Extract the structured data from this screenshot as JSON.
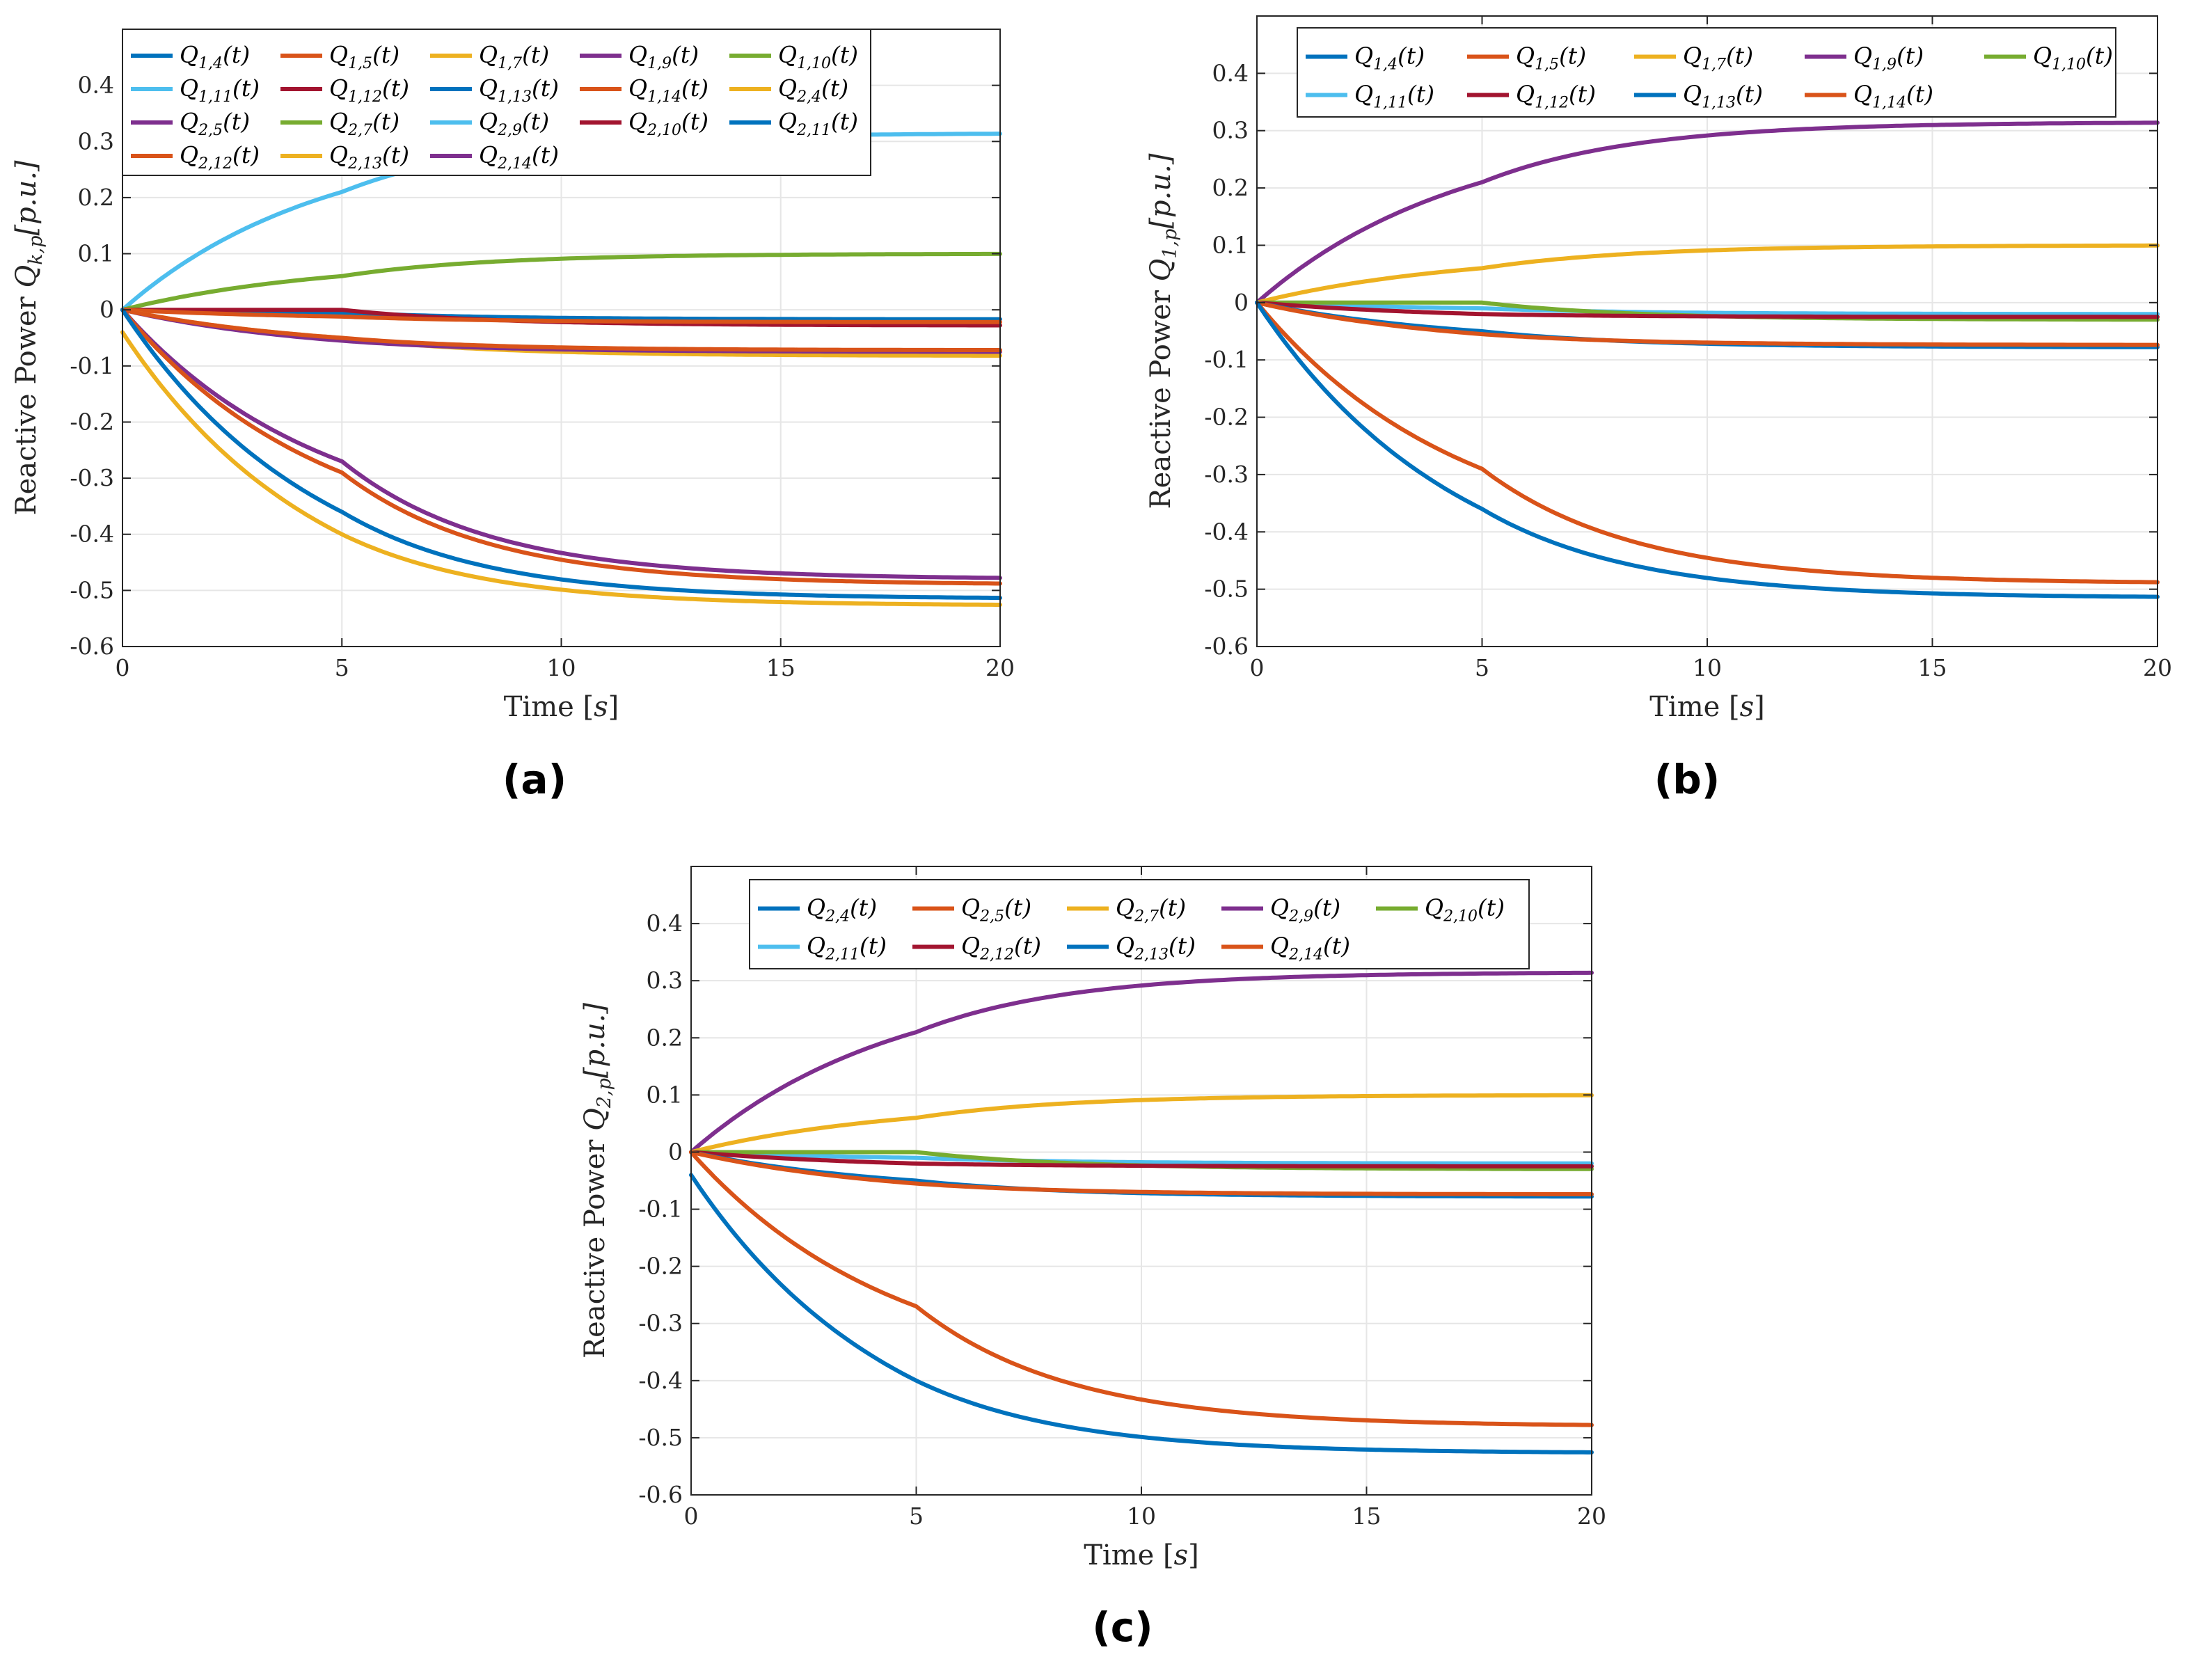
{
  "colors": {
    "blue": "#0072BD",
    "orange": "#D95319",
    "yellow": "#EDB120",
    "purple": "#7E2F8E",
    "green": "#77AC30",
    "cyan": "#4DBEEE",
    "darkred": "#A2142F"
  },
  "chart_data": [
    {
      "id": "a",
      "type": "line",
      "caption": "(a)",
      "xlabel": "Time [s]",
      "ylabel": "Reactive Power Q_k,p [p.u.]",
      "xlim": [
        0,
        20
      ],
      "ylim": [
        -0.6,
        0.5
      ],
      "xticks": [
        "0",
        "5",
        "10",
        "15",
        "20"
      ],
      "yticks": [
        "0.4",
        "0.3",
        "0.2",
        "0.1",
        "0",
        "-0.1",
        "-0.2",
        "-0.3",
        "-0.4",
        "-0.5",
        "-0.6"
      ],
      "legend_position": "top",
      "legend_rows": [
        [
          "Q1,4(t)",
          "Q1,5(t)",
          "Q1,7(t)",
          "Q1,9(t)",
          "Q1,10(t)"
        ],
        [
          "Q1,11(t)",
          "Q1,12(t)",
          "Q1,13(t)",
          "Q1,14(t)",
          "Q2,4(t)"
        ],
        [
          "Q2,5(t)",
          "Q2,7(t)",
          "Q2,9(t)",
          "Q2,10(t)",
          "Q2,11(t)"
        ],
        [
          "Q2,12(t)",
          "Q2,13(t)",
          "Q2,14(t)"
        ]
      ],
      "legend_colors": [
        [
          "blue",
          "orange",
          "yellow",
          "purple",
          "green"
        ],
        [
          "cyan",
          "darkred",
          "blue",
          "orange",
          "yellow"
        ],
        [
          "purple",
          "green",
          "cyan",
          "darkred",
          "blue"
        ],
        [
          "orange",
          "yellow",
          "purple"
        ]
      ],
      "series": [
        {
          "name": "Q1,11 / Q2,9",
          "color": "cyan",
          "y0": 0,
          "y5": 0.21,
          "yinf": 0.315
        },
        {
          "name": "Q1,10 / Q2,7",
          "color": "green",
          "y0": 0,
          "y5": 0.06,
          "yinf": 0.1
        },
        {
          "name": "Q1,13",
          "color": "blue",
          "y0": 0,
          "y5": -0.005,
          "yinf": -0.017
        },
        {
          "name": "Q1,12",
          "color": "darkred",
          "y0": 0,
          "y5": 0.0,
          "yinf": -0.028
        },
        {
          "name": "Q1,5",
          "color": "orange",
          "y0": 0,
          "y5": -0.012,
          "yinf": -0.022
        },
        {
          "name": "Q1,7",
          "color": "yellow",
          "y0": 0,
          "y5": -0.05,
          "yinf": -0.082
        },
        {
          "name": "Q1,9",
          "color": "purple",
          "y0": 0,
          "y5": -0.055,
          "yinf": -0.075
        },
        {
          "name": "Q1,14",
          "color": "orange",
          "y0": 0,
          "y5": -0.05,
          "yinf": -0.072
        },
        {
          "name": "Q2,14",
          "color": "purple",
          "y0": 0,
          "y5": -0.27,
          "yinf": -0.48
        },
        {
          "name": "Q2,12",
          "color": "orange",
          "y0": 0,
          "y5": -0.29,
          "yinf": -0.49
        },
        {
          "name": "Q1,4",
          "color": "blue",
          "y0": 0,
          "y5": -0.36,
          "yinf": -0.515
        },
        {
          "name": "Q2,4",
          "color": "yellow",
          "y0": -0.04,
          "y5": -0.4,
          "yinf": -0.527
        }
      ]
    },
    {
      "id": "b",
      "type": "line",
      "caption": "(b)",
      "xlabel": "Time [s]",
      "ylabel": "Reactive Power Q_1,p [p.u.]",
      "xlim": [
        0,
        20
      ],
      "ylim": [
        -0.6,
        0.5
      ],
      "xticks": [
        "0",
        "5",
        "10",
        "15",
        "20"
      ],
      "yticks": [
        "0.4",
        "0.3",
        "0.2",
        "0.1",
        "0",
        "-0.1",
        "-0.2",
        "-0.3",
        "-0.4",
        "-0.5",
        "-0.6"
      ],
      "legend_position": "top",
      "legend_rows": [
        [
          "Q1,4(t)",
          "Q1,5(t)",
          "Q1,7(t)",
          "Q1,9(t)",
          "Q1,10(t)"
        ],
        [
          "Q1,11(t)",
          "Q1,12(t)",
          "Q1,13(t)",
          "Q1,14(t)"
        ]
      ],
      "legend_colors": [
        [
          "blue",
          "orange",
          "yellow",
          "purple",
          "green"
        ],
        [
          "cyan",
          "darkred",
          "blue",
          "orange"
        ]
      ],
      "series": [
        {
          "name": "Q1,9",
          "color": "purple",
          "y0": 0,
          "y5": 0.21,
          "yinf": 0.315
        },
        {
          "name": "Q1,7",
          "color": "yellow",
          "y0": 0,
          "y5": 0.06,
          "yinf": 0.1
        },
        {
          "name": "Q1,11",
          "color": "cyan",
          "y0": 0,
          "y5": -0.01,
          "yinf": -0.02
        },
        {
          "name": "Q1,10",
          "color": "green",
          "y0": 0,
          "y5": 0.0,
          "yinf": -0.03
        },
        {
          "name": "Q1,12",
          "color": "darkred",
          "y0": 0,
          "y5": -0.02,
          "yinf": -0.025
        },
        {
          "name": "Q1,13",
          "color": "blue",
          "y0": 0,
          "y5": -0.05,
          "yinf": -0.078
        },
        {
          "name": "Q1,14",
          "color": "orange",
          "y0": 0,
          "y5": -0.055,
          "yinf": -0.074
        },
        {
          "name": "Q1,5",
          "color": "orange",
          "y0": 0,
          "y5": -0.29,
          "yinf": -0.49
        },
        {
          "name": "Q1,4",
          "color": "blue",
          "y0": 0,
          "y5": -0.36,
          "yinf": -0.515
        }
      ]
    },
    {
      "id": "c",
      "type": "line",
      "caption": "(c)",
      "xlabel": "Time [s]",
      "ylabel": "Reactive Power Q_2,p [p.u.]",
      "xlim": [
        0,
        20
      ],
      "ylim": [
        -0.6,
        0.5
      ],
      "xticks": [
        "0",
        "5",
        "10",
        "15",
        "20"
      ],
      "yticks": [
        "0.4",
        "0.3",
        "0.2",
        "0.1",
        "0",
        "-0.1",
        "-0.2",
        "-0.3",
        "-0.4",
        "-0.5",
        "-0.6"
      ],
      "legend_position": "top",
      "legend_rows": [
        [
          "Q2,4(t)",
          "Q2,5(t)",
          "Q2,7(t)",
          "Q2,9(t)",
          "Q2,10(t)"
        ],
        [
          "Q2,11(t)",
          "Q2,12(t)",
          "Q2,13(t)",
          "Q2,14(t)"
        ]
      ],
      "legend_colors": [
        [
          "blue",
          "orange",
          "yellow",
          "purple",
          "green"
        ],
        [
          "cyan",
          "darkred",
          "blue",
          "orange"
        ]
      ],
      "series": [
        {
          "name": "Q2,9",
          "color": "purple",
          "y0": 0,
          "y5": 0.21,
          "yinf": 0.315
        },
        {
          "name": "Q2,7",
          "color": "yellow",
          "y0": 0,
          "y5": 0.06,
          "yinf": 0.1
        },
        {
          "name": "Q2,11",
          "color": "cyan",
          "y0": 0,
          "y5": -0.01,
          "yinf": -0.02
        },
        {
          "name": "Q2,10",
          "color": "green",
          "y0": 0,
          "y5": 0.0,
          "yinf": -0.03
        },
        {
          "name": "Q2,12",
          "color": "darkred",
          "y0": 0,
          "y5": -0.02,
          "yinf": -0.025
        },
        {
          "name": "Q2,13",
          "color": "blue",
          "y0": 0,
          "y5": -0.05,
          "yinf": -0.078
        },
        {
          "name": "Q2,14",
          "color": "orange",
          "y0": 0,
          "y5": -0.055,
          "yinf": -0.074
        },
        {
          "name": "Q2,5",
          "color": "orange",
          "y0": 0,
          "y5": -0.27,
          "yinf": -0.48
        },
        {
          "name": "Q2,4",
          "color": "blue",
          "y0": -0.04,
          "y5": -0.4,
          "yinf": -0.527
        }
      ]
    }
  ]
}
